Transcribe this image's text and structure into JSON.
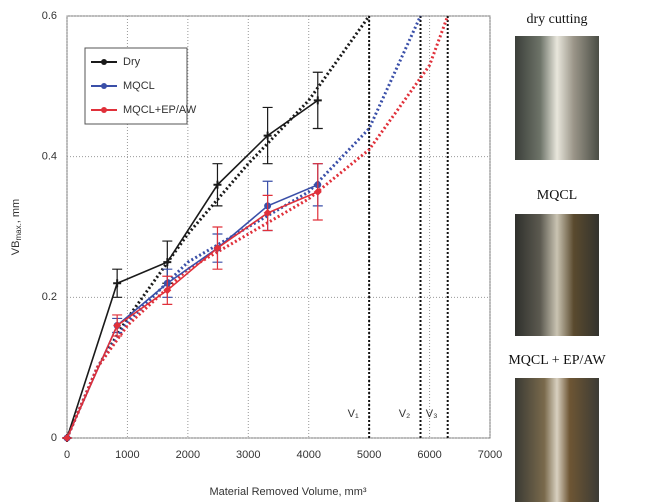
{
  "chart_data": {
    "type": "line",
    "x_label": "Material Removed Volume, mm³",
    "y_label": {
      "main": "VB",
      "sub": "max.",
      "unit": ", mm"
    },
    "xlim": [
      0,
      7000
    ],
    "xticks": [
      0,
      1000,
      2000,
      3000,
      4000,
      5000,
      6000,
      7000
    ],
    "ylim": [
      0,
      0.6
    ],
    "yticks": [
      0,
      0.2,
      0.4,
      0.6
    ],
    "grid": true,
    "legend": "upper-left",
    "x": [
      0,
      830,
      1660,
      2490,
      3320,
      4150
    ],
    "series": [
      {
        "name": "Dry",
        "color": "#1a1a1a",
        "marker": "plus",
        "values": [
          0,
          0.22,
          0.25,
          0.36,
          0.43,
          0.48
        ],
        "errors": [
          0,
          0.02,
          0.03,
          0.03,
          0.04,
          0.04
        ]
      },
      {
        "name": "MQCL",
        "color": "#3a4fa8",
        "marker": "circle",
        "values": [
          0,
          0.16,
          0.22,
          0.27,
          0.33,
          0.36
        ],
        "errors": [
          0,
          0.01,
          0.02,
          0.02,
          0.035,
          0.03
        ]
      },
      {
        "name": "MQCL+EP/AW",
        "color": "#e0303a",
        "marker": "diamond",
        "values": [
          0,
          0.16,
          0.21,
          0.27,
          0.32,
          0.35
        ],
        "errors": [
          0,
          0.015,
          0.02,
          0.03,
          0.025,
          0.04
        ]
      }
    ],
    "trends": [
      {
        "color": "#1a1a1a",
        "x": [
          0,
          500,
          1000,
          2000,
          3000,
          4000,
          5000
        ],
        "values": [
          0,
          0.1,
          0.17,
          0.29,
          0.39,
          0.48,
          0.6
        ]
      },
      {
        "color": "#3a4fa8",
        "x": [
          0,
          500,
          1000,
          2000,
          3000,
          4000,
          5000,
          5850
        ],
        "values": [
          0,
          0.1,
          0.165,
          0.25,
          0.3,
          0.35,
          0.44,
          0.6
        ]
      },
      {
        "color": "#e0303a",
        "x": [
          0,
          500,
          1000,
          2000,
          3000,
          4000,
          5000,
          6000,
          6300
        ],
        "values": [
          0,
          0.1,
          0.16,
          0.24,
          0.29,
          0.34,
          0.41,
          0.53,
          0.6
        ]
      }
    ],
    "markers": [
      {
        "value": 5000,
        "label": "V₁"
      },
      {
        "value": 5850,
        "label": "V₂"
      },
      {
        "value": 6300,
        "label": "V₃"
      }
    ]
  },
  "panels": [
    {
      "label": "dry cutting"
    },
    {
      "label": "MQCL"
    },
    {
      "label": "MQCL + EP/AW"
    }
  ]
}
